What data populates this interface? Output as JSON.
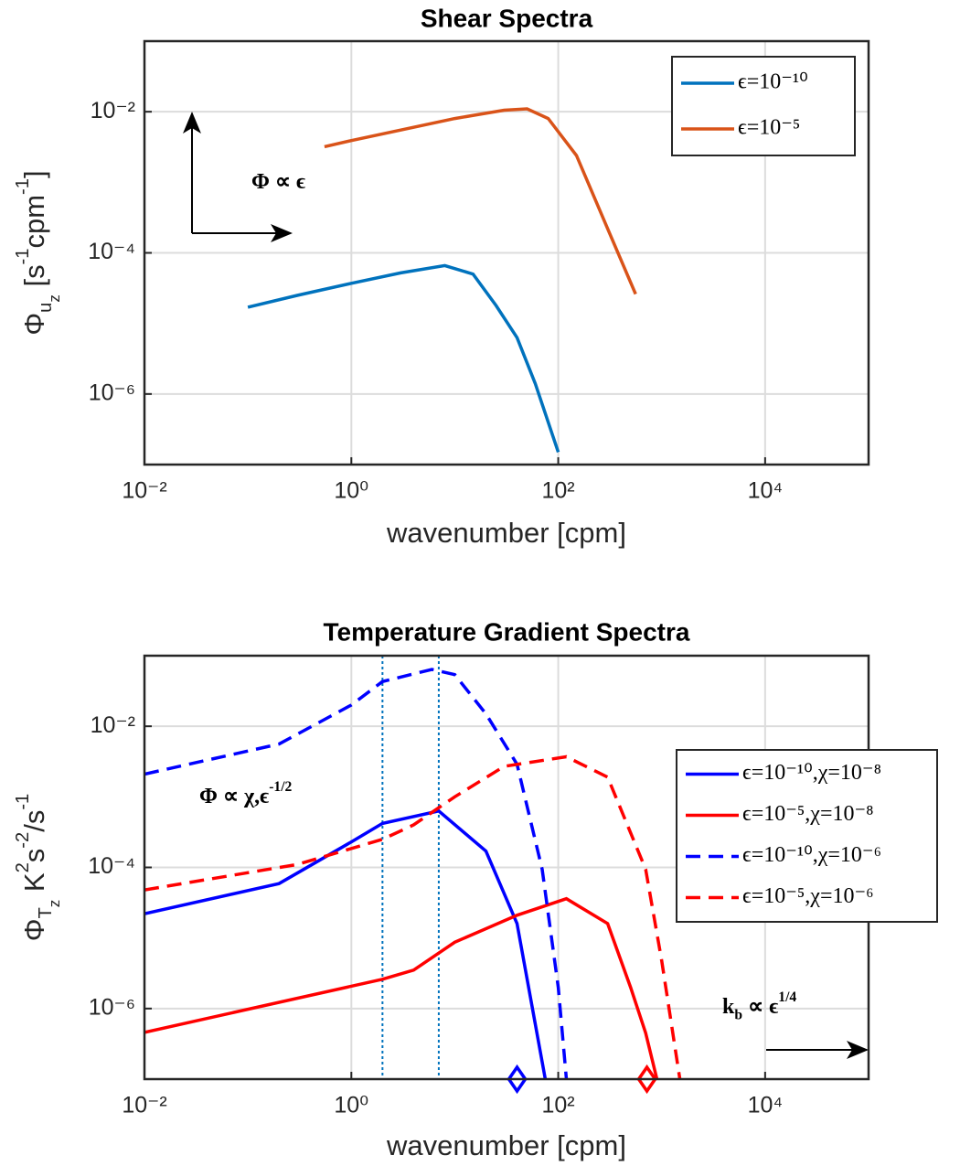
{
  "chart_data": [
    {
      "type": "line",
      "title": "Shear Spectra",
      "x_label": "wavenumber [cpm]",
      "y_label": [
        {
          "t": "Φ"
        },
        {
          "sub": "u"
        },
        {
          "subsub": "z"
        },
        {
          "t": " [s"
        },
        {
          "sup": "-1"
        },
        {
          "t": "cpm"
        },
        {
          "sup": "-1"
        },
        {
          "t": "]"
        }
      ],
      "xscale": "log",
      "yscale": "log",
      "grid": true,
      "legend": "upper right",
      "xlim": [
        0.01,
        100000
      ],
      "ylim": [
        1e-07,
        0.1
      ],
      "xticks": [
        {
          "value": 0.01,
          "label": "10⁻²"
        },
        {
          "value": 1,
          "label": "10⁰"
        },
        {
          "value": 100,
          "label": "10²"
        },
        {
          "value": 10000,
          "label": "10⁴"
        }
      ],
      "yticks": [
        {
          "value": 1e-06,
          "label": "10⁻⁶"
        },
        {
          "value": 0.0001,
          "label": "10⁻⁴"
        },
        {
          "value": 0.01,
          "label": "10⁻²"
        }
      ],
      "annotations": [
        [
          {
            "t": "Φ ∝ ϵ"
          }
        ]
      ],
      "series": [
        {
          "name": "ϵ=10⁻¹⁰",
          "color": "#0072BD",
          "style": "solid",
          "x": [
            0.1,
            0.3,
            1,
            3,
            8,
            15,
            25,
            40,
            60,
            100
          ],
          "values": [
            1.7e-05,
            2.5e-05,
            3.7e-05,
            5.2e-05,
            6.6e-05,
            5e-05,
            1.8e-05,
            6.3e-06,
            1.4e-06,
            1.5e-07
          ]
        },
        {
          "name": "ϵ=10⁻⁵",
          "color": "#D95319",
          "style": "solid",
          "x": [
            0.55,
            1,
            3,
            10,
            30,
            50,
            80,
            150,
            300,
            560
          ],
          "values": [
            0.0032,
            0.0039,
            0.0055,
            0.008,
            0.0105,
            0.011,
            0.008,
            0.0024,
            0.00022,
            2.6e-05
          ]
        }
      ]
    },
    {
      "type": "line",
      "title": "Temperature Gradient Spectra",
      "x_label": "wavenumber [cpm]",
      "y_label": [
        {
          "t": "Φ"
        },
        {
          "sub": "T"
        },
        {
          "subsub": "z"
        },
        {
          "t": " K"
        },
        {
          "sup": "2"
        },
        {
          "t": "s"
        },
        {
          "sup": "-2"
        },
        {
          "t": "/s"
        },
        {
          "sup": "-1"
        }
      ],
      "xscale": "log",
      "yscale": "log",
      "grid": true,
      "legend": "right",
      "xlim": [
        0.01,
        100000
      ],
      "ylim": [
        1e-07,
        0.1
      ],
      "xticks": [
        {
          "value": 0.01,
          "label": "10⁻²"
        },
        {
          "value": 1,
          "label": "10⁰"
        },
        {
          "value": 100,
          "label": "10²"
        },
        {
          "value": 10000,
          "label": "10⁴"
        }
      ],
      "yticks": [
        {
          "value": 1e-06,
          "label": "10⁻⁶"
        },
        {
          "value": 0.0001,
          "label": "10⁻⁴"
        },
        {
          "value": 0.01,
          "label": "10⁻²"
        }
      ],
      "annotations": [
        [
          {
            "t": "Φ ∝ χ,ϵ"
          },
          {
            "sup": "-1/2"
          }
        ],
        [
          {
            "t": "k"
          },
          {
            "sub": "b"
          },
          {
            "t": " ∝ ϵ"
          },
          {
            "sup": "1/4"
          }
        ]
      ],
      "vlines": {
        "color": "#0072BD",
        "x": [
          2,
          7
        ]
      },
      "markers": [
        {
          "color": "#0000FF",
          "x": 40,
          "y": 1e-07
        },
        {
          "color": "#FF0000",
          "x": 720,
          "y": 1e-07
        }
      ],
      "series": [
        {
          "name": "ϵ=10⁻¹⁰,χ=10⁻⁸",
          "color": "#0000FF",
          "style": "solid",
          "x": [
            0.01,
            0.2,
            1,
            2,
            7,
            20,
            40,
            60,
            75
          ],
          "values": [
            2.2e-05,
            5.9e-05,
            0.00023,
            0.00042,
            0.00063,
            0.00017,
            1.6e-05,
            6e-07,
            1e-07
          ]
        },
        {
          "name": "ϵ=10⁻⁵,χ=10⁻⁸",
          "color": "#FF0000",
          "style": "solid",
          "x": [
            0.01,
            2,
            4,
            10,
            40,
            120,
            300,
            500,
            700,
            900
          ],
          "values": [
            4.6e-07,
            2.6e-06,
            3.5e-06,
            8.7e-06,
            2.1e-05,
            3.6e-05,
            1.6e-05,
            2e-06,
            4.5e-07,
            1e-07
          ]
        },
        {
          "name": "ϵ=10⁻¹⁰,χ=10⁻⁶",
          "color": "#0000FF",
          "style": "dashed",
          "x": [
            0.01,
            0.2,
            1,
            2,
            6,
            10,
            20,
            40,
            70,
            100,
            120
          ],
          "values": [
            0.0021,
            0.0056,
            0.02,
            0.043,
            0.064,
            0.054,
            0.015,
            0.0029,
            9.4e-05,
            2e-06,
            1e-07
          ]
        },
        {
          "name": "ϵ=10⁻⁵,χ=10⁻⁶",
          "color": "#FF0000",
          "style": "dashed",
          "x": [
            0.01,
            0.3,
            2,
            4,
            10,
            30,
            120,
            300,
            700,
            1000,
            1500
          ],
          "values": [
            4.8e-05,
            0.00011,
            0.00025,
            0.0004,
            0.001,
            0.0027,
            0.0037,
            0.0019,
            9.4e-05,
            4.8e-06,
            1e-07
          ]
        }
      ]
    }
  ]
}
